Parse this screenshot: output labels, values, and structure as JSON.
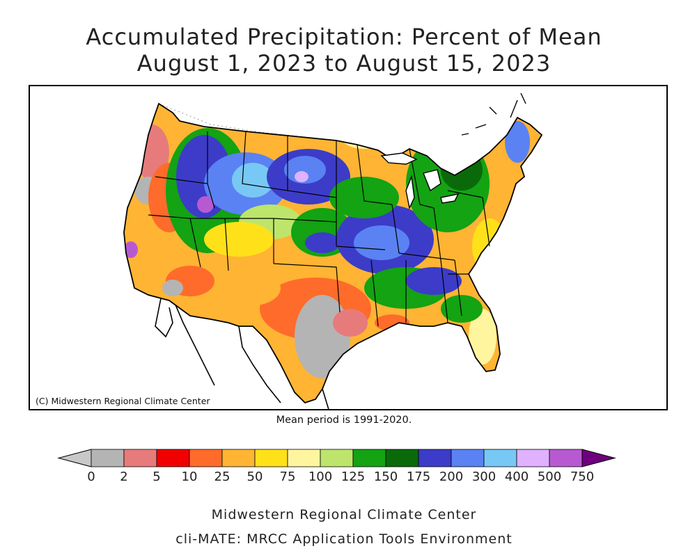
{
  "title_line1": "Accumulated Precipitation: Percent of Mean",
  "title_line2": "August 1, 2023 to August 15, 2023",
  "map_credit": "(C) Midwestern Regional Climate Center",
  "mean_note": "Mean period is 1991-2020.",
  "legend": {
    "labels": [
      "0",
      "2",
      "5",
      "10",
      "25",
      "50",
      "75",
      "100",
      "125",
      "150",
      "175",
      "200",
      "300",
      "400",
      "500",
      "750"
    ],
    "colors": [
      "#b4b4b4",
      "#e77b7b",
      "#f00000",
      "#ff6b2b",
      "#ffb433",
      "#ffe11a",
      "#fff59e",
      "#bde56b",
      "#13a313",
      "#0a6a0a",
      "#3c3cc8",
      "#5a82f2",
      "#78c8f5",
      "#dfb1ff",
      "#b75ad2"
    ],
    "low_arrow_color": "#c8c8c8",
    "high_arrow_color": "#6e007e"
  },
  "footer_line1": "Midwestern Regional Climate Center",
  "footer_line2": "cli-MATE: MRCC Application Tools Environment"
}
